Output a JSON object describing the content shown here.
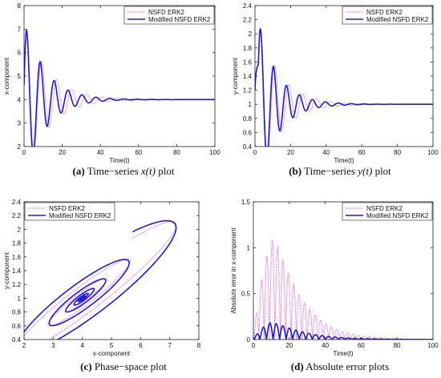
{
  "figure": {
    "captions": [
      {
        "tag": "(a)",
        "text": "Time−series ",
        "math": "x(t)",
        "suffix": " plot"
      },
      {
        "tag": "(b)",
        "text": "Time−series ",
        "math": "y(t)",
        "suffix": " plot"
      },
      {
        "tag": "(c)",
        "text": "Phase−space plot",
        "math": "",
        "suffix": ""
      },
      {
        "tag": "(d)",
        "text": "Absolute error plots",
        "math": "",
        "suffix": ""
      }
    ]
  },
  "colors": {
    "nsfd": "#e23ee6",
    "modified": "#1b1bd4",
    "axis": "#222222"
  },
  "chart_data": [
    {
      "type": "line",
      "xlabel": "Time(t)",
      "ylabel": "x-component",
      "xlim": [
        0,
        100
      ],
      "ylim": [
        2,
        8
      ],
      "xticks": [
        0,
        20,
        40,
        60,
        80,
        100
      ],
      "yticks": [
        2,
        3,
        4,
        5,
        6,
        7,
        8
      ],
      "legend": "top-right",
      "grid": false,
      "series": [
        {
          "name": "NSFD ERK2",
          "style": "dotted",
          "kind": "timeseries",
          "eq": 4,
          "amp": 3.6,
          "period": 7.9,
          "decay": 0.085,
          "phase": 0.5,
          "lag": 0
        },
        {
          "name": "Modified NSFD ERK2",
          "style": "solid",
          "kind": "timeseries",
          "eq": 4,
          "amp": 3.6,
          "period": 7.3,
          "decay": 0.095,
          "phase": 0.5,
          "lag": 0
        }
      ]
    },
    {
      "type": "line",
      "xlabel": "Time(t)",
      "ylabel": "y-component",
      "xlim": [
        0,
        100
      ],
      "ylim": [
        0.4,
        2.4
      ],
      "xticks": [
        0,
        20,
        40,
        60,
        80,
        100
      ],
      "yticks": [
        0.4,
        0.6,
        0.8,
        1,
        1.2,
        1.4,
        1.6,
        1.8,
        2,
        2.2,
        2.4
      ],
      "legend": "top-right",
      "grid": false,
      "series": [
        {
          "name": "NSFD ERK2",
          "style": "dotted",
          "kind": "timeseries",
          "eq": 1,
          "amp": 1.2,
          "period": 7.9,
          "decay": 0.085,
          "phase": 0.5,
          "lag": 1.9
        },
        {
          "name": "Modified NSFD ERK2",
          "style": "solid",
          "kind": "timeseries",
          "eq": 1,
          "amp": 1.2,
          "period": 7.3,
          "decay": 0.095,
          "phase": 0.5,
          "lag": 1.9
        }
      ]
    },
    {
      "type": "line",
      "xlabel": "x-component",
      "ylabel": "y-component",
      "xlim": [
        2,
        8
      ],
      "ylim": [
        0.4,
        2.4
      ],
      "xticks": [
        2,
        3,
        4,
        5,
        6,
        7,
        8
      ],
      "yticks": [
        0.4,
        0.6,
        0.8,
        1,
        1.2,
        1.4,
        1.6,
        1.8,
        2,
        2.2,
        2.4
      ],
      "legend": "top-left",
      "grid": false,
      "series": [
        {
          "name": "NSFD ERK2",
          "style": "dotted",
          "kind": "phase",
          "eqx": 4,
          "eqy": 1,
          "ax": 3.6,
          "ay": 1.2,
          "period": 7.9,
          "decay": 0.085,
          "phase": 0.5,
          "lag": 1.9
        },
        {
          "name": "Modified NSFD ERK2",
          "style": "solid",
          "kind": "phase",
          "eqx": 4,
          "eqy": 1,
          "ax": 3.6,
          "ay": 1.2,
          "period": 7.3,
          "decay": 0.095,
          "phase": 0.5,
          "lag": 1.9
        }
      ]
    },
    {
      "type": "line",
      "xlabel": "Time(t)",
      "ylabel": "Absolute error in x-component",
      "xlim": [
        0,
        100
      ],
      "ylim": [
        0,
        1.5
      ],
      "xticks": [
        0,
        20,
        40,
        60,
        80,
        100
      ],
      "yticks": [
        0,
        0.5,
        1,
        1.5
      ],
      "legend": "top-right",
      "grid": false,
      "series": [
        {
          "name": "NSFD ERK2",
          "style": "dotted",
          "kind": "error",
          "amp": 1.45,
          "period": 3.0,
          "peakT": 11,
          "rise": 0.13,
          "decay": 0.072
        },
        {
          "name": "Modified NSFD ERK2",
          "style": "solid",
          "kind": "error",
          "amp": 0.26,
          "period": 3.65,
          "peakT": 9.5,
          "rise": 0.13,
          "decay": 0.062
        }
      ]
    }
  ]
}
